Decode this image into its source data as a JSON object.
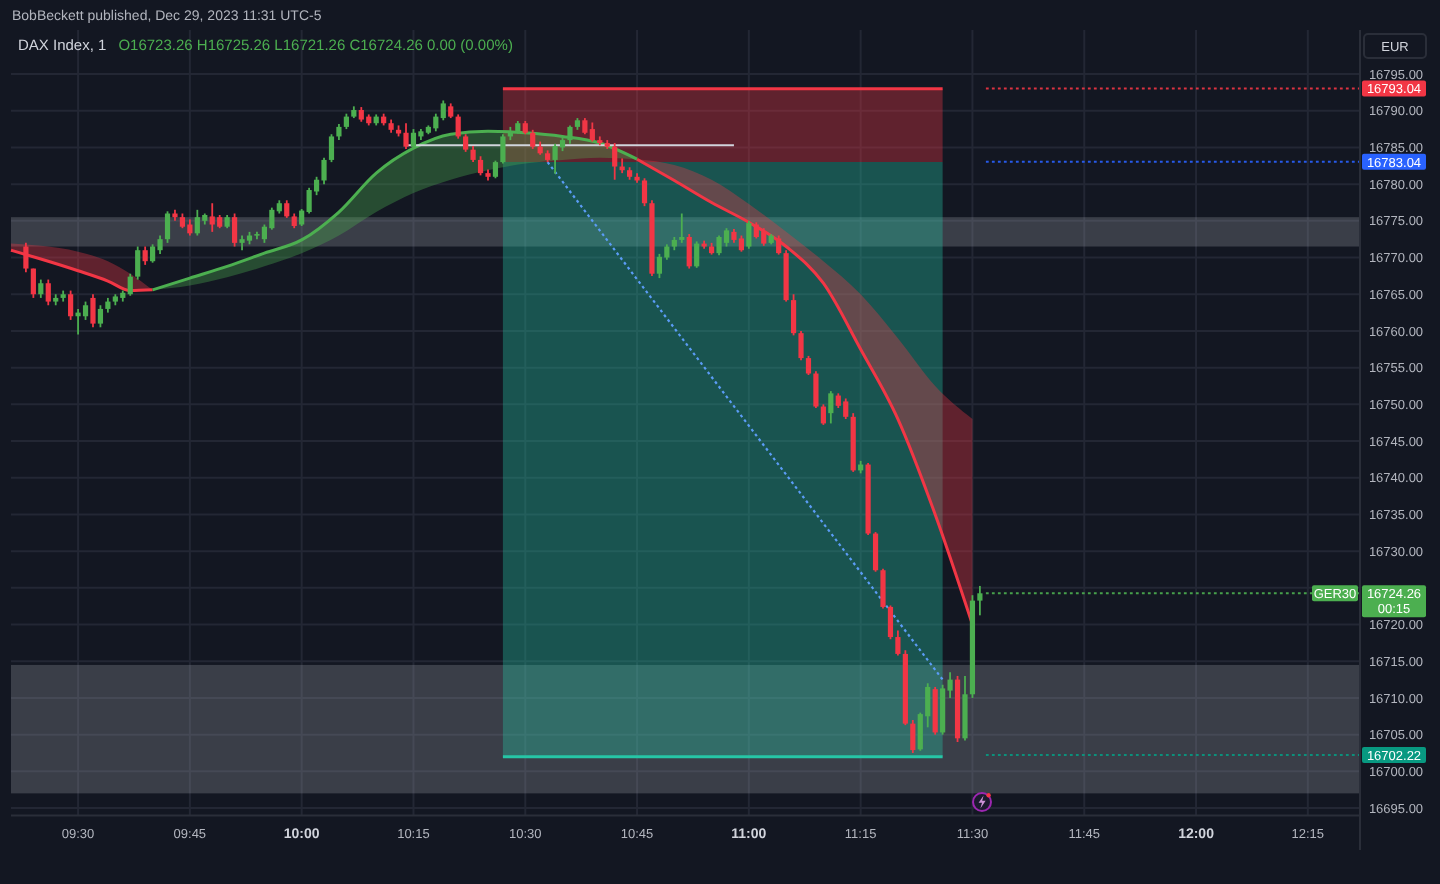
{
  "chart_data": {
    "type": "candlestick",
    "title": "DAX Index, 1",
    "subtitle": "O16723.26 H16725.26 L16721.26 C16724.26 0.00 (0.00%)",
    "ylabel": "EUR",
    "annotations": [
      "BobBeckett published, Dec 29, 2023 11:31 UTC-5",
      "00:15"
    ],
    "xlim": [
      "2023-12-29T09:21",
      "2023-12-29T12:22"
    ],
    "ylim": [
      16694,
      16801
    ],
    "xticks": [
      {
        "value": "2023-12-29T09:30",
        "label": "09:30"
      },
      {
        "value": "2023-12-29T09:45",
        "label": "09:45"
      },
      {
        "value": "2023-12-29T10:00",
        "label": "10:00"
      },
      {
        "value": "2023-12-29T10:15",
        "label": "10:15"
      },
      {
        "value": "2023-12-29T10:30",
        "label": "10:30"
      },
      {
        "value": "2023-12-29T10:45",
        "label": "10:45"
      },
      {
        "value": "2023-12-29T11:00",
        "label": "11:00"
      },
      {
        "value": "2023-12-29T11:15",
        "label": "11:15"
      },
      {
        "value": "2023-12-29T11:30",
        "label": "11:30"
      },
      {
        "value": "2023-12-29T11:45",
        "label": "11:45"
      },
      {
        "value": "2023-12-29T12:00",
        "label": "12:00"
      },
      {
        "value": "2023-12-29T12:15",
        "label": "12:15"
      }
    ],
    "yticks": [
      {
        "value": 16695,
        "label": "16695.00"
      },
      {
        "value": 16700,
        "label": "16700.00"
      },
      {
        "value": 16705,
        "label": "16705.00"
      },
      {
        "value": 16710,
        "label": "16710.00"
      },
      {
        "value": 16715,
        "label": "16715.00"
      },
      {
        "value": 16720,
        "label": "16720.00"
      },
      {
        "value": 16725,
        "label": null
      },
      {
        "value": 16730,
        "label": "16730.00"
      },
      {
        "value": 16735,
        "label": "16735.00"
      },
      {
        "value": 16740,
        "label": "16740.00"
      },
      {
        "value": 16745,
        "label": "16745.00"
      },
      {
        "value": 16750,
        "label": "16750.00"
      },
      {
        "value": 16755,
        "label": "16755.00"
      },
      {
        "value": 16760,
        "label": "16760.00"
      },
      {
        "value": 16765,
        "label": "16765.00"
      },
      {
        "value": 16770,
        "label": "16770.00"
      },
      {
        "value": 16775,
        "label": "16775.00"
      },
      {
        "value": 16780,
        "label": "16780.00"
      },
      {
        "value": 16785,
        "label": "16785.00"
      },
      {
        "value": 16790,
        "label": "16790.00"
      },
      {
        "value": 16795,
        "label": "16795.00"
      }
    ],
    "grid": true,
    "bands": [
      {
        "axis": "y",
        "from": 16771.5,
        "to": 16775.5,
        "color": "#9598a1"
      },
      {
        "axis": "y",
        "from": 16697,
        "to": 16714.5,
        "color": "#9598a1"
      }
    ],
    "ref_lines": [
      {
        "axis": "y",
        "value": 16793.04,
        "label": "16793.04",
        "color": "#f23645",
        "line_style": "dotted"
      },
      {
        "axis": "y",
        "value": 16783.04,
        "label": "16783.04",
        "color": "#2962ff",
        "line_style": "dotted"
      },
      {
        "axis": "y",
        "value": 16724.26,
        "label": "16724.26",
        "color": "#4caf50",
        "line_style": "dotted"
      },
      {
        "axis": "y",
        "value": 16702.22,
        "label": "16702.22",
        "color": "#089981",
        "line_style": "dotted"
      }
    ],
    "series": [
      {
        "type": "line",
        "color": "#f23645",
        "x": [
          "2023-12-29T10:27",
          "2023-12-29T11:26"
        ],
        "values": [
          16793,
          16793
        ],
        "lower": [
          16783,
          16783
        ],
        "upper": [
          16793,
          16793
        ]
      },
      {
        "type": "line",
        "color": "#26c6a6",
        "x": [
          "2023-12-29T10:27",
          "2023-12-29T11:26"
        ],
        "values": [
          16702,
          16702
        ],
        "lower": [
          16702,
          16702
        ],
        "upper": [
          16783,
          16783
        ]
      },
      {
        "type": "line",
        "color": "#f23645",
        "x": [
          "2023-12-29T09:21",
          "2023-12-29T09:25",
          "2023-12-29T09:30",
          "2023-12-29T09:34",
          "2023-12-29T09:37",
          "2023-12-29T09:40"
        ],
        "values": [
          16771.0,
          16769.8,
          16768.2,
          16766.8,
          16765.5,
          16765.6
        ],
        "lower": [
          16771.0,
          16769.8,
          16768.2,
          16766.8,
          16765.5,
          16765.6
        ],
        "upper": [
          16771.9,
          16771.6,
          16770.8,
          16769.5,
          16767.8,
          16765.6
        ]
      },
      {
        "type": "line",
        "color": "#4caf50",
        "x": [
          "2023-12-29T09:40",
          "2023-12-29T09:45",
          "2023-12-29T09:50",
          "2023-12-29T09:55",
          "2023-12-29T10:00",
          "2023-12-29T10:05",
          "2023-12-29T10:10",
          "2023-12-29T10:15",
          "2023-12-29T10:20",
          "2023-12-29T10:25",
          "2023-12-29T10:30",
          "2023-12-29T10:35",
          "2023-12-29T10:40",
          "2023-12-29T10:45"
        ],
        "values": [
          16765.6,
          16767.2,
          16768.8,
          16770.6,
          16772.4,
          16776.2,
          16781.5,
          16784.9,
          16786.8,
          16787.2,
          16787.0,
          16786.5,
          16785.6,
          16783.4
        ],
        "lower": [
          16765.6,
          16766.2,
          16767.3,
          16768.8,
          16770.6,
          16773.0,
          16776.2,
          16778.8,
          16780.6,
          16781.9,
          16782.8,
          16783.3,
          16783.6,
          16783.4
        ],
        "upper": [
          16765.6,
          16767.2,
          16768.8,
          16770.6,
          16772.4,
          16776.2,
          16781.5,
          16784.9,
          16786.8,
          16787.2,
          16787.0,
          16786.5,
          16785.6,
          16783.4
        ]
      },
      {
        "type": "line",
        "color": "#f23645",
        "x": [
          "2023-12-29T10:45",
          "2023-12-29T10:50",
          "2023-12-29T10:55",
          "2023-12-29T11:00",
          "2023-12-29T11:05",
          "2023-12-29T11:10",
          "2023-12-29T11:15",
          "2023-12-29T11:20",
          "2023-12-29T11:25",
          "2023-12-29T11:30"
        ],
        "values": [
          16783.4,
          16780.5,
          16777.5,
          16774.8,
          16771.5,
          16766.5,
          16757.5,
          16748.0,
          16735.0,
          16720.0
        ],
        "lower": [
          16783.4,
          16780.5,
          16777.5,
          16774.8,
          16771.5,
          16766.5,
          16757.5,
          16748.0,
          16735.0,
          16720.0
        ],
        "upper": [
          16783.4,
          16782.6,
          16780.6,
          16777.3,
          16773.5,
          16769.5,
          16765.0,
          16759.0,
          16752.5,
          16748.0
        ]
      },
      {
        "type": "line",
        "color": "#d1d4dc",
        "x": [
          "2023-12-29T10:14",
          "2023-12-29T10:58"
        ],
        "values": [
          16785.3,
          16785.3
        ]
      },
      {
        "type": "line",
        "color": "#5b9cf6",
        "line_style": "dotted",
        "x": [
          "2023-12-29T10:33",
          "2023-12-29T11:26"
        ],
        "values": [
          16783,
          16712.5
        ]
      },
      {
        "name": "GER30",
        "x": [
          "2023-12-29T09:23",
          "2023-12-29T09:24",
          "2023-12-29T09:25",
          "2023-12-29T09:26",
          "2023-12-29T09:27",
          "2023-12-29T09:28",
          "2023-12-29T09:29",
          "2023-12-29T09:30",
          "2023-12-29T09:31",
          "2023-12-29T09:32",
          "2023-12-29T09:33",
          "2023-12-29T09:34",
          "2023-12-29T09:35",
          "2023-12-29T09:36",
          "2023-12-29T09:37",
          "2023-12-29T09:38",
          "2023-12-29T09:39",
          "2023-12-29T09:40",
          "2023-12-29T09:41",
          "2023-12-29T09:42",
          "2023-12-29T09:43",
          "2023-12-29T09:44",
          "2023-12-29T09:45",
          "2023-12-29T09:46",
          "2023-12-29T09:47",
          "2023-12-29T09:48",
          "2023-12-29T09:49",
          "2023-12-29T09:50",
          "2023-12-29T09:51",
          "2023-12-29T09:52",
          "2023-12-29T09:53",
          "2023-12-29T09:54",
          "2023-12-29T09:55",
          "2023-12-29T09:56",
          "2023-12-29T09:57",
          "2023-12-29T09:58",
          "2023-12-29T09:59",
          "2023-12-29T10:00",
          "2023-12-29T10:01",
          "2023-12-29T10:02",
          "2023-12-29T10:03",
          "2023-12-29T10:04",
          "2023-12-29T10:05",
          "2023-12-29T10:06",
          "2023-12-29T10:07",
          "2023-12-29T10:08",
          "2023-12-29T10:09",
          "2023-12-29T10:10",
          "2023-12-29T10:11",
          "2023-12-29T10:12",
          "2023-12-29T10:13",
          "2023-12-29T10:14",
          "2023-12-29T10:15",
          "2023-12-29T10:16",
          "2023-12-29T10:17",
          "2023-12-29T10:18",
          "2023-12-29T10:19",
          "2023-12-29T10:20",
          "2023-12-29T10:21",
          "2023-12-29T10:22",
          "2023-12-29T10:23",
          "2023-12-29T10:24",
          "2023-12-29T10:25",
          "2023-12-29T10:26",
          "2023-12-29T10:27",
          "2023-12-29T10:28",
          "2023-12-29T10:29",
          "2023-12-29T10:30",
          "2023-12-29T10:31",
          "2023-12-29T10:32",
          "2023-12-29T10:33",
          "2023-12-29T10:34",
          "2023-12-29T10:35",
          "2023-12-29T10:36",
          "2023-12-29T10:37",
          "2023-12-29T10:38",
          "2023-12-29T10:39",
          "2023-12-29T10:40",
          "2023-12-29T10:41",
          "2023-12-29T10:42",
          "2023-12-29T10:43",
          "2023-12-29T10:44",
          "2023-12-29T10:45",
          "2023-12-29T10:46",
          "2023-12-29T10:47",
          "2023-12-29T10:48",
          "2023-12-29T10:49",
          "2023-12-29T10:50",
          "2023-12-29T10:51",
          "2023-12-29T10:52",
          "2023-12-29T10:53",
          "2023-12-29T10:54",
          "2023-12-29T10:55",
          "2023-12-29T10:56",
          "2023-12-29T10:57",
          "2023-12-29T10:58",
          "2023-12-29T10:59",
          "2023-12-29T11:00",
          "2023-12-29T11:01",
          "2023-12-29T11:02",
          "2023-12-29T11:03",
          "2023-12-29T11:04",
          "2023-12-29T11:05",
          "2023-12-29T11:06",
          "2023-12-29T11:07",
          "2023-12-29T11:08",
          "2023-12-29T11:09",
          "2023-12-29T11:10",
          "2023-12-29T11:11",
          "2023-12-29T11:12",
          "2023-12-29T11:13",
          "2023-12-29T11:14",
          "2023-12-29T11:15",
          "2023-12-29T11:16",
          "2023-12-29T11:17",
          "2023-12-29T11:18",
          "2023-12-29T11:19",
          "2023-12-29T11:20",
          "2023-12-29T11:21",
          "2023-12-29T11:22",
          "2023-12-29T11:23",
          "2023-12-29T11:24",
          "2023-12-29T11:25",
          "2023-12-29T11:26",
          "2023-12-29T11:27",
          "2023-12-29T11:28",
          "2023-12-29T11:29",
          "2023-12-29T11:30",
          "2023-12-29T11:31"
        ],
        "ohlc": [
          [
            16771.5,
            16772,
            16768,
            16768.5
          ],
          [
            16768.5,
            16768.5,
            16764.5,
            16765
          ],
          [
            16765,
            16767,
            16764.5,
            16766.5
          ],
          [
            16766.5,
            16767,
            16763.5,
            16764
          ],
          [
            16764,
            16765,
            16763.5,
            16764.5
          ],
          [
            16764.5,
            16765.5,
            16764,
            16765
          ],
          [
            16765,
            16765.5,
            16761.5,
            16762
          ],
          [
            16762,
            16763,
            16759.5,
            16762.5
          ],
          [
            16762,
            16764,
            16761.5,
            16763.5
          ],
          [
            16764.5,
            16765,
            16760.5,
            16761
          ],
          [
            16761,
            16763.5,
            16760.5,
            16763
          ],
          [
            16763,
            16764.5,
            16762.5,
            16764
          ],
          [
            16764,
            16765,
            16763.5,
            16764.7
          ],
          [
            16764.5,
            16765.5,
            16764,
            16765.2
          ],
          [
            16765,
            16767.8,
            16764.8,
            16767.4
          ],
          [
            16767.4,
            16771.5,
            16767,
            16771
          ],
          [
            16771,
            16771.5,
            16769,
            16769.5
          ],
          [
            16769.5,
            16771.8,
            16769.3,
            16771.5
          ],
          [
            16771,
            16773,
            16770.5,
            16772.5
          ],
          [
            16772.5,
            16776.3,
            16772,
            16776
          ],
          [
            16776,
            16776.5,
            16775,
            16775.5
          ],
          [
            16775.5,
            16776,
            16774,
            16774.2
          ],
          [
            16774.5,
            16775.2,
            16773,
            16773.3
          ],
          [
            16773.3,
            16776.5,
            16773,
            16775.5
          ],
          [
            16775,
            16776,
            16774.5,
            16775.8
          ],
          [
            16775.6,
            16777.4,
            16773.5,
            16774.5
          ],
          [
            16775.5,
            16775.8,
            16774,
            16774.2
          ],
          [
            16774.2,
            16775.8,
            16774,
            16775.5
          ],
          [
            16775.5,
            16776,
            16771.5,
            16772
          ],
          [
            16772,
            16773,
            16771,
            16772.5
          ],
          [
            16772.3,
            16773.5,
            16771.8,
            16773
          ],
          [
            16773,
            16773.5,
            16772.5,
            16773.2
          ],
          [
            16772.5,
            16774.5,
            16772,
            16774.2
          ],
          [
            16774,
            16776.8,
            16773.8,
            16776.5
          ],
          [
            16776.3,
            16777.8,
            16776,
            16777.4
          ],
          [
            16777.4,
            16777.8,
            16775.4,
            16775.6
          ],
          [
            16775.6,
            16776,
            16774,
            16774.3
          ],
          [
            16774.5,
            16776.6,
            16774.3,
            16776.4
          ],
          [
            16776.2,
            16779.5,
            16776,
            16779.2
          ],
          [
            16779,
            16781,
            16778.5,
            16780.6
          ],
          [
            16780.5,
            16783.6,
            16780,
            16783.3
          ],
          [
            16783.3,
            16786.8,
            16783,
            16786.5
          ],
          [
            16786.5,
            16788.2,
            16786,
            16787.8
          ],
          [
            16787.8,
            16789.6,
            16787.5,
            16789.2
          ],
          [
            16789.2,
            16790.6,
            16789,
            16790.1
          ],
          [
            16790.1,
            16790.5,
            16788.5,
            16788.8
          ],
          [
            16789.2,
            16789.5,
            16788,
            16788.3
          ],
          [
            16788.3,
            16789.5,
            16788,
            16789.2
          ],
          [
            16789.2,
            16789.6,
            16788,
            16788.3
          ],
          [
            16788.3,
            16788.8,
            16787,
            16787.4
          ],
          [
            16787.4,
            16788,
            16786.5,
            16786.9
          ],
          [
            16787,
            16788.3,
            16784.8,
            16785.1
          ],
          [
            16785.1,
            16787.5,
            16785,
            16787
          ],
          [
            16786.5,
            16787.5,
            16786,
            16787.2
          ],
          [
            16787,
            16788,
            16786.8,
            16787.8
          ],
          [
            16787.6,
            16789.6,
            16787.2,
            16789.2
          ],
          [
            16789,
            16791.4,
            16788.7,
            16791
          ],
          [
            16790.6,
            16791,
            16789,
            16789.2
          ],
          [
            16789.2,
            16789.5,
            16786.2,
            16786.5
          ],
          [
            16786.5,
            16786.8,
            16784.4,
            16784.7
          ],
          [
            16784.7,
            16785.2,
            16783,
            16783.3
          ],
          [
            16783.3,
            16783.8,
            16781.2,
            16781.5
          ],
          [
            16781.5,
            16782,
            16780.5,
            16781
          ],
          [
            16781,
            16783.2,
            16780.8,
            16783
          ],
          [
            16783,
            16786.8,
            16782.8,
            16786.5
          ],
          [
            16786.5,
            16787.8,
            16786,
            16787.2
          ],
          [
            16787.2,
            16788.6,
            16786.9,
            16788.3
          ],
          [
            16788.3,
            16788.6,
            16786.8,
            16787
          ],
          [
            16787,
            16787.4,
            16784.8,
            16785.1
          ],
          [
            16785.1,
            16785.8,
            16784,
            16784.2
          ],
          [
            16784.2,
            16784.6,
            16783,
            16783.3
          ],
          [
            16783.3,
            16785.5,
            16781.4,
            16785.2
          ],
          [
            16785,
            16786.3,
            16784.5,
            16786
          ],
          [
            16786,
            16788,
            16785.5,
            16787.8
          ],
          [
            16787.8,
            16789,
            16787.4,
            16788.7
          ],
          [
            16788.7,
            16789,
            16786.8,
            16787
          ],
          [
            16787.5,
            16788.4,
            16785.8,
            16786
          ],
          [
            16786,
            16786.5,
            16785.3,
            16785.6
          ],
          [
            16785.6,
            16786,
            16784.8,
            16785.1
          ],
          [
            16785.1,
            16785.6,
            16780.6,
            16782.4
          ],
          [
            16782.4,
            16783.5,
            16781.5,
            16781.9
          ],
          [
            16781.9,
            16782.3,
            16780.6,
            16781
          ],
          [
            16781,
            16781.5,
            16780.2,
            16780.5
          ],
          [
            16780.5,
            16780.8,
            16777,
            16777.4
          ],
          [
            16777.4,
            16777.8,
            16767.5,
            16767.8
          ],
          [
            16767.8,
            16770.5,
            16767.2,
            16770.1
          ],
          [
            16770,
            16771.8,
            16769.7,
            16771.5
          ],
          [
            16771.5,
            16772.8,
            16771,
            16772.4
          ],
          [
            16772.4,
            16776,
            16772,
            16772.8
          ],
          [
            16772.8,
            16773.2,
            16768.5,
            16768.8
          ],
          [
            16768.8,
            16772.2,
            16768.6,
            16771.9
          ],
          [
            16771.9,
            16772.3,
            16771.2,
            16771.5
          ],
          [
            16771.5,
            16772,
            16770.4,
            16770.6
          ],
          [
            16770.6,
            16773,
            16770.3,
            16772.8
          ],
          [
            16772,
            16774,
            16771.5,
            16773.7
          ],
          [
            16773.5,
            16773.9,
            16772,
            16772.4
          ],
          [
            16772.6,
            16773,
            16770.8,
            16771
          ],
          [
            16771.5,
            16775,
            16771.2,
            16774.7
          ],
          [
            16774.5,
            16774.8,
            16772.6,
            16772.8
          ],
          [
            16773.6,
            16774,
            16771.6,
            16771.9
          ],
          [
            16772,
            16773.2,
            16771.8,
            16773
          ],
          [
            16772.6,
            16773,
            16770.4,
            16770.6
          ],
          [
            16770.6,
            16771,
            16764,
            16764.2
          ],
          [
            16764.2,
            16765,
            16759.4,
            16759.7
          ],
          [
            16759.7,
            16760,
            16756,
            16756.3
          ],
          [
            16756.3,
            16756.6,
            16754,
            16754.2
          ],
          [
            16754.2,
            16754.5,
            16749.5,
            16749.7
          ],
          [
            16749.7,
            16750,
            16747.2,
            16747.4
          ],
          [
            16748.8,
            16751.8,
            16747.4,
            16751.5
          ],
          [
            16751.2,
            16751.5,
            16749.5,
            16749.8
          ],
          [
            16750.4,
            16750.8,
            16748,
            16748.3
          ],
          [
            16748.3,
            16748.8,
            16740.8,
            16741
          ],
          [
            16741,
            16742.3,
            16740.6,
            16741.8
          ],
          [
            16741.8,
            16742,
            16732.2,
            16732.4
          ],
          [
            16732.4,
            16732.6,
            16727.2,
            16727.4
          ],
          [
            16727.4,
            16727.6,
            16722.2,
            16722.4
          ],
          [
            16722.4,
            16722.6,
            16718,
            16718.3
          ],
          [
            16718.3,
            16719.2,
            16715.8,
            16716
          ],
          [
            16716,
            16716.5,
            16706.3,
            16706.5
          ],
          [
            16706.5,
            16707,
            16702.5,
            16702.9
          ],
          [
            16703,
            16708,
            16702.8,
            16707.8
          ],
          [
            16707.5,
            16712,
            16706,
            16711.5
          ],
          [
            16711.2,
            16711.5,
            16705,
            16705.3
          ],
          [
            16705.3,
            16711.8,
            16705,
            16711.3
          ],
          [
            16711,
            16713.5,
            16710,
            16712.5
          ],
          [
            16712.5,
            16713,
            16704,
            16704.5
          ],
          [
            16704.5,
            16713,
            16704.2,
            16710.5
          ],
          [
            16710.5,
            16724,
            16710,
            16723.26
          ],
          [
            16723.26,
            16725.26,
            16721.26,
            16724.26
          ]
        ],
        "colors": [
          "#f23645",
          "#f23645",
          "#4caf50",
          "#f23645",
          "#4caf50",
          "#4caf50",
          "#f23645",
          "#4caf50",
          "#4caf50",
          "#f23645",
          "#4caf50",
          "#4caf50",
          "#4caf50",
          "#4caf50",
          "#4caf50",
          "#4caf50",
          "#f23645",
          "#4caf50",
          "#4caf50",
          "#4caf50",
          "#f23645",
          "#f23645",
          "#f23645",
          "#4caf50",
          "#4caf50",
          "#f23645",
          "#f23645",
          "#4caf50",
          "#f23645",
          "#4caf50",
          "#4caf50",
          "#4caf50",
          "#4caf50",
          "#4caf50",
          "#4caf50",
          "#f23645",
          "#f23645",
          "#4caf50",
          "#4caf50",
          "#4caf50",
          "#4caf50",
          "#4caf50",
          "#4caf50",
          "#4caf50",
          "#4caf50",
          "#f23645",
          "#f23645",
          "#4caf50",
          "#f23645",
          "#f23645",
          "#f23645",
          "#f23645",
          "#4caf50",
          "#4caf50",
          "#4caf50",
          "#4caf50",
          "#4caf50",
          "#f23645",
          "#f23645",
          "#f23645",
          "#f23645",
          "#f23645",
          "#f23645",
          "#4caf50",
          "#4caf50",
          "#4caf50",
          "#4caf50",
          "#f23645",
          "#f23645",
          "#f23645",
          "#f23645",
          "#4caf50",
          "#4caf50",
          "#4caf50",
          "#4caf50",
          "#f23645",
          "#f23645",
          "#f23645",
          "#f23645",
          "#f23645",
          "#f23645",
          "#f23645",
          "#f23645",
          "#f23645",
          "#f23645",
          "#4caf50",
          "#4caf50",
          "#4caf50",
          "#4caf50",
          "#f23645",
          "#4caf50",
          "#f23645",
          "#f23645",
          "#4caf50",
          "#4caf50",
          "#f23645",
          "#f23645",
          "#4caf50",
          "#f23645",
          "#f23645",
          "#4caf50",
          "#f23645",
          "#f23645",
          "#f23645",
          "#f23645",
          "#f23645",
          "#f23645",
          "#f23645",
          "#4caf50",
          "#f23645",
          "#f23645",
          "#f23645",
          "#4caf50",
          "#f23645",
          "#f23645",
          "#f23645",
          "#f23645",
          "#f23645",
          "#f23645",
          "#f23645",
          "#4caf50",
          "#4caf50",
          "#f23645",
          "#4caf50",
          "#4caf50",
          "#f23645",
          "#4caf50",
          "#4caf50",
          "#4caf50"
        ]
      }
    ]
  }
}
